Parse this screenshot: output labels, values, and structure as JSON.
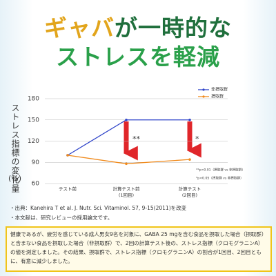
{
  "chart_data": {
    "type": "line",
    "title_line1": [
      "ギャバ",
      "が一時的な"
    ],
    "title_line2": "ストレスを軽減",
    "y_label": "ストレス指標の変化量",
    "y_unit": "(%)",
    "categories": [
      "テスト前",
      "計算テスト前\n(1回目)",
      "計算テスト\n(2回目)"
    ],
    "series": [
      {
        "name": "非摂取群",
        "color": "#2f44c9",
        "values": [
          100,
          150,
          150
        ]
      },
      {
        "name": "摂取群",
        "color": "#f08a1c",
        "values": [
          100,
          88,
          94
        ]
      }
    ],
    "ylim": [
      60,
      180
    ],
    "yticks": [
      60,
      90,
      120,
      150,
      180
    ],
    "grid": true,
    "annotations": [
      "**",
      "*"
    ],
    "notes": [
      "**p<0.01（摂取群 vs 非摂取群）",
      "*p<0.05（摂取群 vs 非摂取群）"
    ]
  },
  "footnotes": [
    "・出典：Kanehira T et al. J. Nutr. Sci. Vitaminol. 57, 9-15(2011)を改変",
    "・本文献は、研究レビューの採用論文です。"
  ],
  "description": "健康であるが、疲労を感じている成人男女9名を対象に、GABA 25 mgを含む食品を摂取した場合（摂取群）と含まない食品を摂取した場合（非摂取群）で、2回の計算テスト後の、ストレス指標（クロモグラニンA）の値を測定しました。その結果、摂取群で、ストレス指標（クロモグラニンA）の割合が1回目、2回目ともに、有意に減少しました。"
}
